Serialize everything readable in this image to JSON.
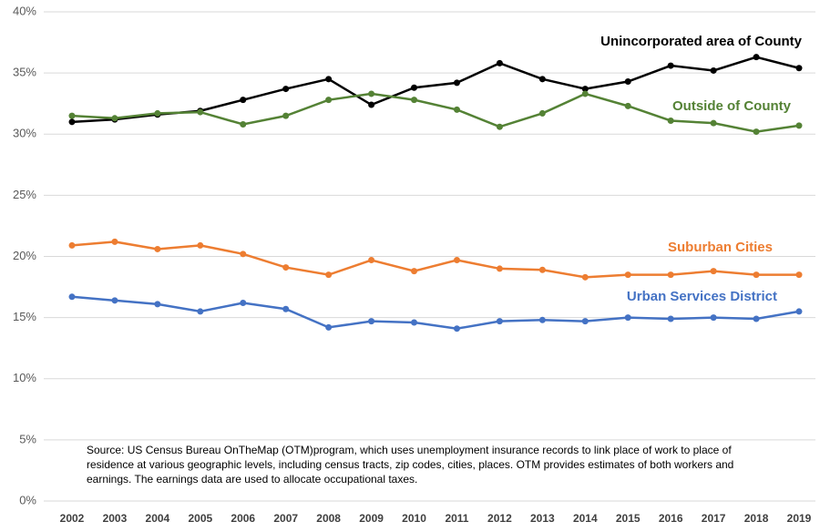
{
  "chart_data": {
    "type": "line",
    "categories": [
      "2002",
      "2003",
      "2004",
      "2005",
      "2006",
      "2007",
      "2008",
      "2009",
      "2010",
      "2011",
      "2012",
      "2013",
      "2014",
      "2015",
      "2016",
      "2017",
      "2018",
      "2019"
    ],
    "series": [
      {
        "name": "Unincorporated area of County",
        "color": "#000000",
        "values": [
          31.0,
          31.2,
          31.6,
          31.9,
          32.8,
          33.7,
          34.5,
          32.4,
          33.8,
          34.2,
          35.8,
          34.5,
          33.7,
          34.3,
          35.6,
          35.2,
          36.3,
          35.4
        ]
      },
      {
        "name": "Outside of County",
        "color": "#548235",
        "values": [
          31.5,
          31.3,
          31.7,
          31.8,
          30.8,
          31.5,
          32.8,
          33.3,
          32.8,
          32.0,
          30.6,
          31.7,
          33.3,
          32.3,
          31.1,
          30.9,
          30.2,
          30.7
        ]
      },
      {
        "name": "Suburban Cities",
        "color": "#ed7d31",
        "values": [
          20.9,
          21.2,
          20.6,
          20.9,
          20.2,
          19.1,
          18.5,
          19.7,
          18.8,
          19.7,
          19.0,
          18.9,
          18.3,
          18.5,
          18.5,
          18.8,
          18.5,
          18.5
        ]
      },
      {
        "name": "Urban Services District",
        "color": "#4472c4",
        "values": [
          16.7,
          16.4,
          16.1,
          15.5,
          16.2,
          15.7,
          14.2,
          14.7,
          14.6,
          14.1,
          14.7,
          14.8,
          14.7,
          15.0,
          14.9,
          15.0,
          14.9,
          15.5
        ]
      }
    ],
    "ylim": [
      0,
      40
    ],
    "yticks": [
      {
        "value": 0,
        "label": "0%"
      },
      {
        "value": 5,
        "label": "5%"
      },
      {
        "value": 10,
        "label": "10%"
      },
      {
        "value": 15,
        "label": "15%"
      },
      {
        "value": 20,
        "label": "20%"
      },
      {
        "value": 25,
        "label": "25%"
      },
      {
        "value": 30,
        "label": "30%"
      },
      {
        "value": 35,
        "label": "35%"
      },
      {
        "value": 40,
        "label": "40%"
      }
    ],
    "grid": true,
    "annotation": "Source: US Census Bureau OnTheMap (OTM)program, which uses unemployment insurance records to link place of work to place of residence at various geographic levels, including census tracts, zip codes, cities, places. OTM provides estimates of both workers and earnings. The earnings data are used to allocate occupational taxes."
  }
}
